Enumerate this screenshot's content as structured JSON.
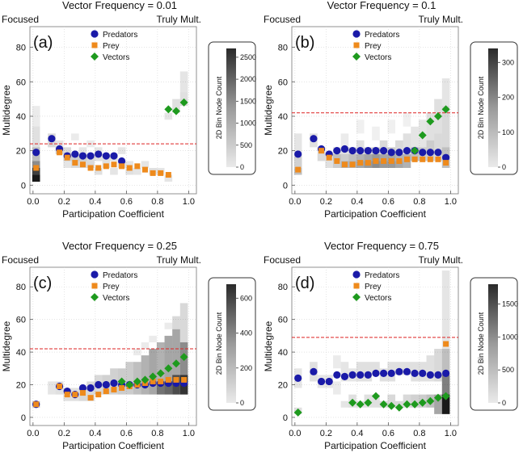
{
  "figure": {
    "shared": {
      "xlabel": "Participation Coefficient",
      "ylabel": "Multidegree",
      "left_annotation": "Focused",
      "right_annotation": "Truly Mult.",
      "colorbar_label": "2D Bin Node Count",
      "legend": [
        "Predators",
        "Prey",
        "Vectors"
      ],
      "colors": {
        "predators": "#1a1aa8",
        "prey": "#ee8a1c",
        "vectors": "#1e9a1e",
        "reference_line": "#dd2222",
        "bins": "#000000"
      }
    }
  },
  "chart_data": [
    {
      "type": "scatter",
      "panel_label": "(a)",
      "title": "Vector Frequency = 0.01",
      "xlabel": "Participation Coefficient",
      "ylabel": "Multidegree",
      "xlim": [
        -0.02,
        1.05
      ],
      "ylim": [
        -5,
        92
      ],
      "xticks": [
        "0.0",
        "0.2",
        "0.4",
        "0.6",
        "0.8",
        "1.0"
      ],
      "yticks": [
        "0",
        "20",
        "40",
        "60",
        "80"
      ],
      "colorbar": {
        "label": "2D Bin Node Count",
        "ticks": [
          "0",
          "500",
          "1000",
          "1500",
          "2000",
          "2500"
        ],
        "max": 2700
      },
      "reference_line_y": 24,
      "series": [
        {
          "name": "Predators",
          "x": [
            0.02,
            0.12,
            0.17,
            0.22,
            0.27,
            0.32,
            0.37,
            0.42,
            0.47,
            0.52,
            0.57
          ],
          "y": [
            19,
            27,
            21,
            17,
            18,
            17,
            17,
            18,
            17,
            17,
            14
          ]
        },
        {
          "name": "Prey",
          "x": [
            0.02,
            0.17,
            0.22,
            0.27,
            0.32,
            0.37,
            0.42,
            0.47,
            0.52,
            0.57,
            0.62,
            0.67,
            0.72,
            0.77,
            0.82,
            0.87
          ],
          "y": [
            10,
            19,
            16,
            13,
            12,
            10,
            10,
            11,
            12,
            11,
            10,
            11,
            9,
            7,
            7,
            6
          ]
        },
        {
          "name": "Vectors",
          "x": [
            0.87,
            0.92,
            0.97
          ],
          "y": [
            44,
            43,
            48
          ]
        }
      ]
    },
    {
      "type": "scatter",
      "panel_label": "(b)",
      "title": "Vector Frequency = 0.1",
      "xlabel": "Participation Coefficient",
      "ylabel": "Multidegree",
      "xlim": [
        -0.02,
        1.05
      ],
      "ylim": [
        -5,
        92
      ],
      "xticks": [
        "0.0",
        "0.2",
        "0.4",
        "0.6",
        "0.8",
        "1.0"
      ],
      "yticks": [
        "0",
        "20",
        "40",
        "60",
        "80"
      ],
      "colorbar": {
        "label": "2D Bin Node Count",
        "ticks": [
          "0",
          "100",
          "200",
          "300"
        ],
        "max": 340
      },
      "reference_line_y": 42,
      "series": [
        {
          "name": "Predators",
          "x": [
            0.02,
            0.12,
            0.17,
            0.22,
            0.27,
            0.32,
            0.37,
            0.42,
            0.47,
            0.52,
            0.57,
            0.62,
            0.67,
            0.72,
            0.77,
            0.82,
            0.87,
            0.92,
            0.97
          ],
          "y": [
            18,
            27,
            21,
            18,
            20,
            21,
            20,
            20,
            20,
            20,
            20,
            19,
            19,
            20,
            20,
            19,
            19,
            19,
            16
          ]
        },
        {
          "name": "Prey",
          "x": [
            0.02,
            0.17,
            0.22,
            0.27,
            0.32,
            0.37,
            0.42,
            0.47,
            0.52,
            0.57,
            0.62,
            0.67,
            0.72,
            0.77,
            0.82,
            0.87,
            0.92,
            0.97
          ],
          "y": [
            9,
            20,
            16,
            14,
            12,
            12,
            13,
            13,
            14,
            14,
            14,
            14,
            15,
            15,
            15,
            15,
            15,
            13
          ]
        },
        {
          "name": "Vectors",
          "x": [
            0.77,
            0.82,
            0.87,
            0.92,
            0.97
          ],
          "y": [
            20,
            29,
            37,
            40,
            44
          ]
        }
      ]
    },
    {
      "type": "scatter",
      "panel_label": "(c)",
      "title": "Vector Frequency = 0.25",
      "xlabel": "Participation Coefficient",
      "ylabel": "Multidegree",
      "xlim": [
        -0.02,
        1.05
      ],
      "ylim": [
        -5,
        92
      ],
      "xticks": [
        "0.0",
        "0.2",
        "0.4",
        "0.6",
        "0.8",
        "1.0"
      ],
      "yticks": [
        "0",
        "20",
        "40",
        "60",
        "80"
      ],
      "colorbar": {
        "label": "2D Bin Node Count",
        "ticks": [
          "0",
          "200",
          "400",
          "600"
        ],
        "max": 680
      },
      "reference_line_y": 42,
      "series": [
        {
          "name": "Predators",
          "x": [
            0.02,
            0.17,
            0.22,
            0.27,
            0.32,
            0.37,
            0.42,
            0.47,
            0.52,
            0.57,
            0.62,
            0.67,
            0.72,
            0.77,
            0.82,
            0.87,
            0.92,
            0.97
          ],
          "y": [
            8,
            19,
            16,
            14,
            18,
            18,
            20,
            20,
            21,
            20,
            20,
            20,
            20,
            21,
            21,
            21,
            21,
            21
          ]
        },
        {
          "name": "Prey",
          "x": [
            0.02,
            0.17,
            0.22,
            0.27,
            0.32,
            0.37,
            0.42,
            0.47,
            0.52,
            0.57,
            0.62,
            0.67,
            0.72,
            0.77,
            0.82,
            0.87,
            0.92,
            0.97
          ],
          "y": [
            8,
            19,
            14,
            14,
            15,
            12,
            14,
            16,
            17,
            18,
            19,
            20,
            21,
            22,
            22,
            23,
            23,
            23
          ]
        },
        {
          "name": "Vectors",
          "x": [
            0.57,
            0.62,
            0.67,
            0.72,
            0.77,
            0.82,
            0.87,
            0.92,
            0.97
          ],
          "y": [
            22,
            20,
            22,
            23,
            25,
            27,
            30,
            33,
            37
          ]
        }
      ]
    },
    {
      "type": "scatter",
      "panel_label": "(d)",
      "title": "Vector Frequency = 0.75",
      "xlabel": "Participation Coefficient",
      "ylabel": "Multidegree",
      "xlim": [
        -0.02,
        1.05
      ],
      "ylim": [
        -5,
        92
      ],
      "xticks": [
        "0.0",
        "0.2",
        "0.4",
        "0.6",
        "0.8",
        "1.0"
      ],
      "yticks": [
        "0",
        "20",
        "40",
        "60",
        "80"
      ],
      "colorbar": {
        "label": "2D Bin Node Count",
        "ticks": [
          "0",
          "500",
          "1000",
          "1500"
        ],
        "max": 1800
      },
      "reference_line_y": 49,
      "series": [
        {
          "name": "Predators",
          "x": [
            0.02,
            0.12,
            0.17,
            0.22,
            0.27,
            0.32,
            0.37,
            0.42,
            0.47,
            0.52,
            0.57,
            0.62,
            0.67,
            0.72,
            0.77,
            0.82,
            0.87,
            0.92,
            0.97
          ],
          "y": [
            24,
            28,
            22,
            22,
            26,
            25,
            26,
            26,
            26,
            27,
            27,
            27,
            28,
            28,
            27,
            27,
            26,
            26,
            27
          ]
        },
        {
          "name": "Prey",
          "x": [
            0.97
          ],
          "y": [
            45
          ]
        },
        {
          "name": "Vectors",
          "x": [
            0.02,
            0.37,
            0.42,
            0.47,
            0.52,
            0.57,
            0.62,
            0.67,
            0.72,
            0.77,
            0.82,
            0.87,
            0.92,
            0.97
          ],
          "y": [
            3,
            9,
            8,
            9,
            13,
            8,
            7,
            6,
            8,
            8,
            9,
            10,
            12,
            13
          ]
        }
      ]
    }
  ]
}
